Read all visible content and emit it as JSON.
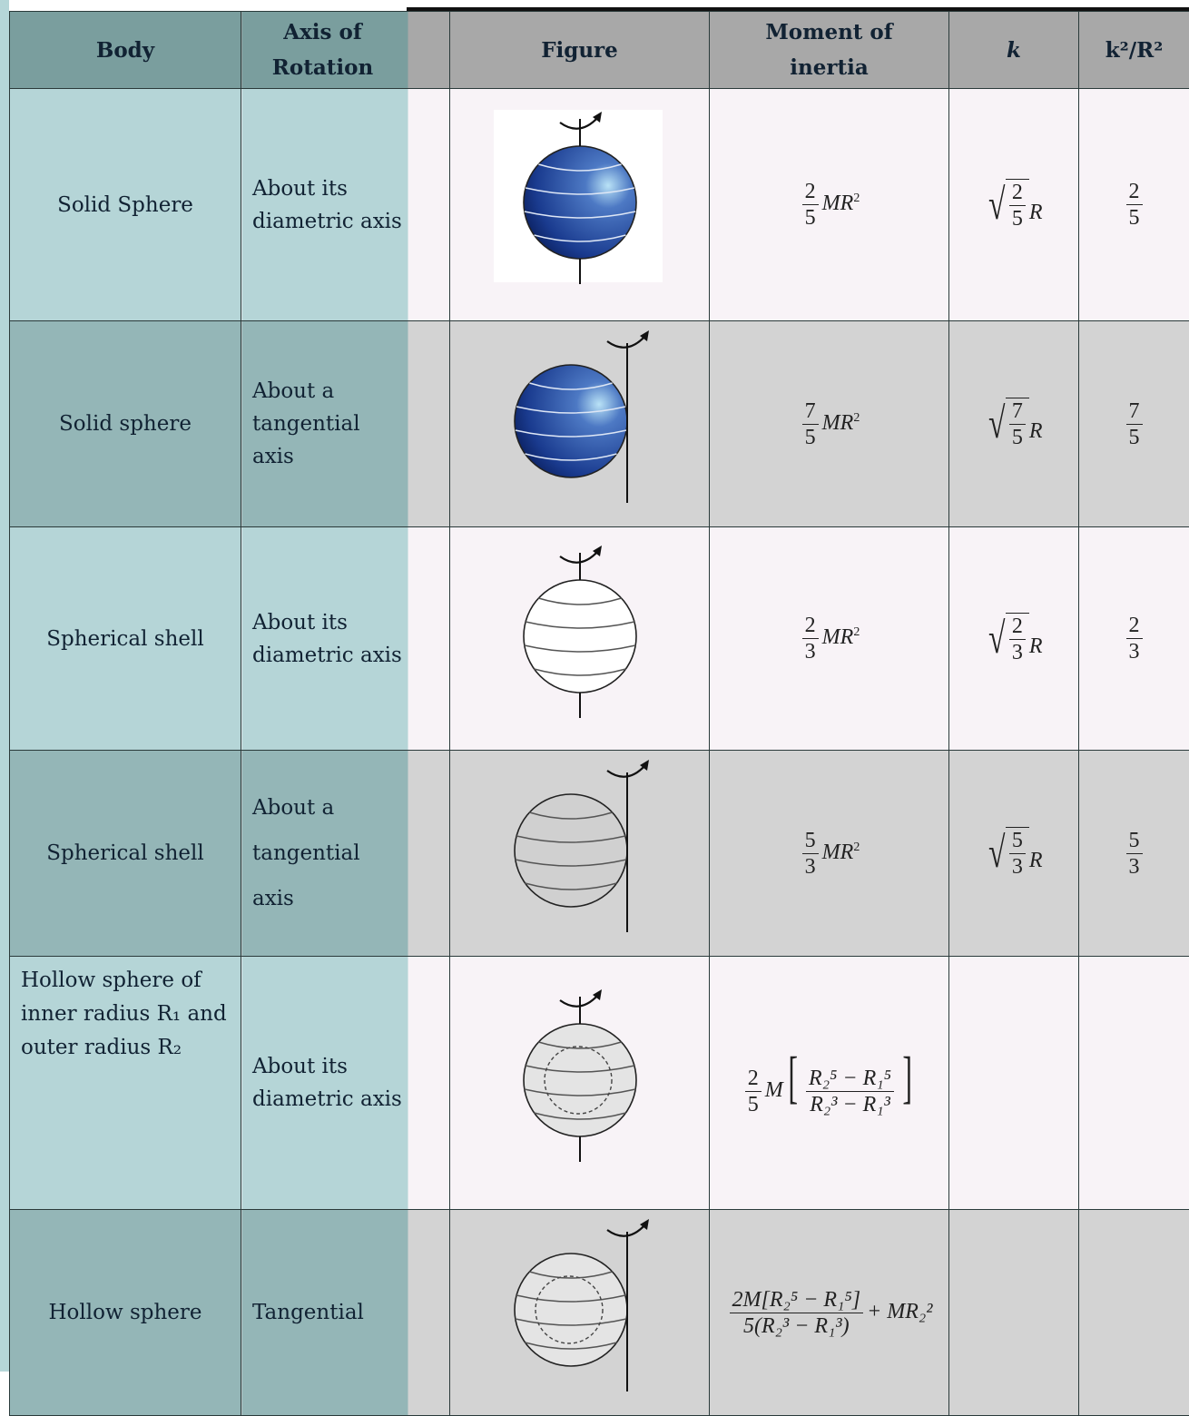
{
  "header": {
    "body": "Body",
    "axis": "Axis of Rotation",
    "figure": "Figure",
    "moment": "Moment of inertia",
    "k": "k",
    "ratio": "k²/R²"
  },
  "rows": [
    {
      "body": "Solid Sphere",
      "axis": "About its diametric axis",
      "moment": {
        "num": "2",
        "den": "5",
        "tail": "MR",
        "sup": "2"
      },
      "k": {
        "num": "2",
        "den": "5",
        "tail": "R"
      },
      "ratio": {
        "num": "2",
        "den": "5"
      }
    },
    {
      "body": "Solid sphere",
      "axis": "About a tangential axis",
      "moment": {
        "num": "7",
        "den": "5",
        "tail": "MR",
        "sup": "2"
      },
      "k": {
        "num": "7",
        "den": "5",
        "tail": "R"
      },
      "ratio": {
        "num": "7",
        "den": "5"
      }
    },
    {
      "body": "Spherical shell",
      "axis": "About its diametric axis",
      "moment": {
        "num": "2",
        "den": "3",
        "tail": "MR",
        "sup": "2"
      },
      "k": {
        "num": "2",
        "den": "3",
        "tail": "R"
      },
      "ratio": {
        "num": "2",
        "den": "3"
      }
    },
    {
      "body": "Spherical shell",
      "axis": "About a tangential axis",
      "moment": {
        "num": "5",
        "den": "3",
        "tail": "MR",
        "sup": "2"
      },
      "k": {
        "num": "5",
        "den": "3",
        "tail": "R"
      },
      "ratio": {
        "num": "5",
        "den": "3"
      }
    },
    {
      "body": "Hollow sphere of inner radius R₁ and outer radius R₂",
      "axis": "About its diametric axis",
      "moment": {
        "coef_num": "2",
        "coef_den": "5",
        "tail": "M",
        "num": "R₂⁵ − R₁⁵",
        "den": "R₂³ − R₁³"
      }
    },
    {
      "body": "Hollow sphere",
      "axis": "Tangential",
      "moment": {
        "num": "2M[R₂⁵ − R₁⁵]",
        "den": "5(R₂³ − R₁³)",
        "tail": "+ MR₂²"
      }
    }
  ]
}
